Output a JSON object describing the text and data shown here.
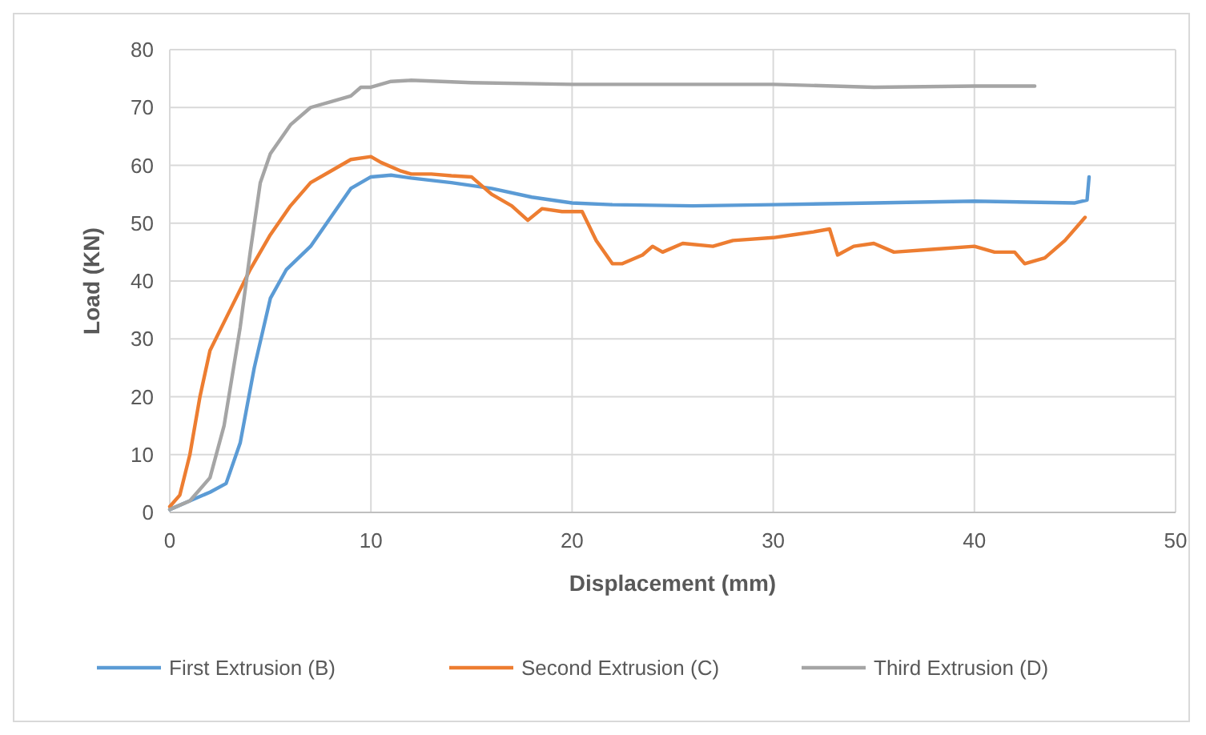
{
  "chart_data": {
    "type": "line",
    "xlabel": "Displacement (mm)",
    "ylabel": "Load (KN)",
    "xlim": [
      0,
      50
    ],
    "ylim": [
      0,
      80
    ],
    "xticks": [
      0,
      10,
      20,
      30,
      40,
      50
    ],
    "yticks": [
      0,
      10,
      20,
      30,
      40,
      50,
      60,
      70,
      80
    ],
    "grid": true,
    "legend": "bottom",
    "marker": "none",
    "line_style": "solid",
    "series": [
      {
        "name": "First Extrusion (B)",
        "color": "#5b9bd5",
        "x": [
          0,
          1,
          2,
          2.8,
          3.5,
          4.2,
          5,
          5.8,
          7,
          8,
          9,
          10,
          11,
          12,
          14,
          16,
          18,
          20,
          22,
          26,
          30,
          35,
          40,
          45,
          45.6,
          45.7
        ],
        "values": [
          0.5,
          2,
          3.5,
          5,
          12,
          25,
          37,
          42,
          46,
          51,
          56,
          58,
          58.3,
          57.8,
          57,
          56,
          54.5,
          53.5,
          53.2,
          53,
          53.2,
          53.5,
          53.8,
          53.5,
          54,
          58
        ]
      },
      {
        "name": "Second Extrusion (C)",
        "color": "#ed7d31",
        "x": [
          0,
          0.5,
          1,
          1.5,
          2,
          3,
          4,
          5,
          6,
          7,
          8,
          9,
          10,
          10.5,
          11.5,
          12,
          13,
          14,
          15,
          16,
          17,
          17.8,
          18.5,
          19.5,
          20.5,
          21.2,
          22,
          22.5,
          23.5,
          24,
          24.5,
          25.5,
          27,
          28,
          30,
          31,
          32,
          32.8,
          33.2,
          34,
          35,
          36,
          38,
          40,
          41,
          42,
          42.5,
          43.5,
          44.5,
          45.5
        ],
        "values": [
          1,
          3,
          10,
          20,
          28,
          35,
          42,
          48,
          53,
          57,
          59,
          61,
          61.5,
          60.5,
          59,
          58.5,
          58.5,
          58.2,
          58,
          55,
          53,
          50.5,
          52.5,
          52,
          52,
          47,
          43,
          43,
          44.5,
          46,
          45,
          46.5,
          46,
          47,
          47.5,
          48,
          48.5,
          49,
          44.5,
          46,
          46.5,
          45,
          45.5,
          46,
          45,
          45,
          43,
          44,
          47,
          51
        ]
      },
      {
        "name": "Third Extrusion (D)",
        "color": "#a5a5a5",
        "x": [
          0,
          1,
          2,
          2.7,
          3.5,
          4,
          4.5,
          5,
          6,
          7,
          8,
          9,
          9.5,
          10,
          11,
          12,
          15,
          20,
          30,
          35,
          40,
          43
        ],
        "values": [
          0.5,
          2,
          6,
          15,
          32,
          45,
          57,
          62,
          67,
          70,
          71,
          72,
          73.5,
          73.5,
          74.5,
          74.7,
          74.3,
          74,
          74,
          73.5,
          73.7,
          73.7
        ]
      }
    ]
  }
}
